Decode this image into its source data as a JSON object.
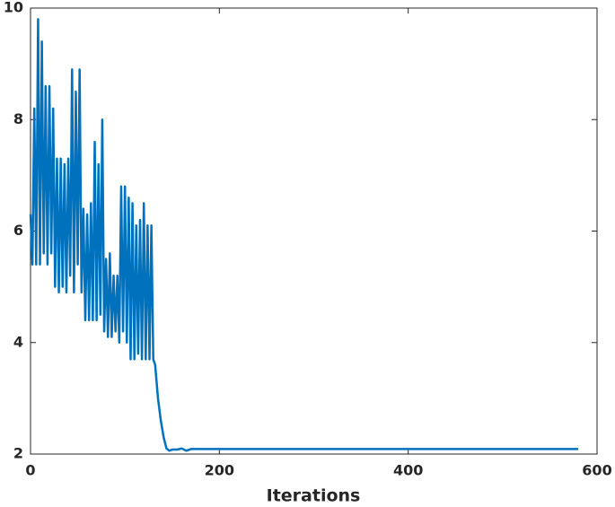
{
  "chart_data": {
    "type": "line",
    "xlabel": "Iterations",
    "x": [
      0,
      2,
      4,
      6,
      8,
      10,
      12,
      14,
      16,
      18,
      20,
      22,
      24,
      26,
      28,
      30,
      32,
      34,
      36,
      38,
      40,
      42,
      44,
      46,
      48,
      50,
      52,
      54,
      56,
      58,
      60,
      62,
      64,
      66,
      68,
      70,
      72,
      74,
      76,
      78,
      80,
      82,
      84,
      86,
      88,
      90,
      92,
      94,
      96,
      98,
      100,
      102,
      104,
      106,
      108,
      110,
      112,
      114,
      116,
      118,
      120,
      122,
      124,
      126,
      128,
      130,
      132,
      135,
      138,
      141,
      144,
      147,
      150,
      155,
      160,
      165,
      170,
      200,
      580
    ],
    "series": [
      {
        "color": "#0072bd",
        "values": [
          6.3,
          5.4,
          8.2,
          5.4,
          9.8,
          5.4,
          9.4,
          5.6,
          8.6,
          5.4,
          8.6,
          5.6,
          8.2,
          5.0,
          7.3,
          4.9,
          7.3,
          5.0,
          7.2,
          4.9,
          7.3,
          5.2,
          8.9,
          4.9,
          8.5,
          5.4,
          8.9,
          4.9,
          6.4,
          4.4,
          6.3,
          4.4,
          6.5,
          4.4,
          7.6,
          4.4,
          7.2,
          4.5,
          8.0,
          4.2,
          5.5,
          4.1,
          5.6,
          4.1,
          5.2,
          4.2,
          5.2,
          4.0,
          6.8,
          4.2,
          6.8,
          4.0,
          6.6,
          3.7,
          6.5,
          3.7,
          6.1,
          3.8,
          6.2,
          3.7,
          6.5,
          3.7,
          6.1,
          3.7,
          6.1,
          3.7,
          3.6,
          3.0,
          2.6,
          2.3,
          2.1,
          2.06,
          2.08,
          2.08,
          2.1,
          2.06,
          2.09,
          2.09,
          2.09
        ]
      }
    ],
    "xlim": [
      0,
      600
    ],
    "xticks": [
      0,
      200,
      400,
      600
    ],
    "ylim": [
      2,
      10
    ],
    "yticks": [
      2,
      4,
      6,
      8,
      10
    ]
  }
}
